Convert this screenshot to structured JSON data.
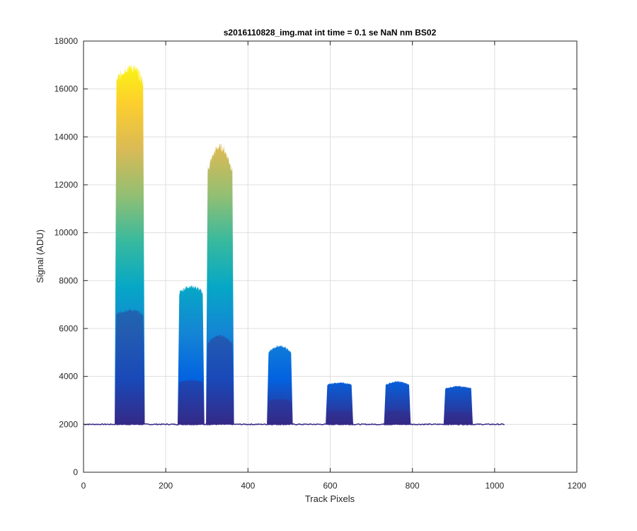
{
  "chart_data": {
    "type": "area",
    "title": "s2016110828_img.mat int time = 0.1 se  NaN nm BS02",
    "xlabel": "Track Pixels",
    "ylabel": "Signal (ADU)",
    "xlim": [
      0,
      1200
    ],
    "ylim": [
      0,
      18000
    ],
    "xticks": [
      0,
      200,
      400,
      600,
      800,
      1000,
      1200
    ],
    "yticks": [
      0,
      2000,
      4000,
      6000,
      8000,
      10000,
      12000,
      14000,
      16000,
      18000
    ],
    "grid": true,
    "colormap": [
      "#352a87",
      "#0363e1",
      "#1485d4",
      "#06a7c6",
      "#38b99e",
      "#92bf73",
      "#d9ba56",
      "#fcce2e",
      "#f9fb0e"
    ],
    "baseline": 2000,
    "x_range": [
      0,
      1024
    ],
    "series": [
      {
        "peaks": [
          {
            "start": 80,
            "end": 145,
            "level": 16300,
            "max": 17000
          },
          {
            "start": 233,
            "end": 290,
            "level": 7500,
            "max": 7800
          },
          {
            "start": 302,
            "end": 362,
            "level": 12600,
            "max": 13700
          },
          {
            "start": 450,
            "end": 505,
            "level": 5000,
            "max": 5300
          },
          {
            "start": 593,
            "end": 652,
            "level": 3650,
            "max": 3750
          },
          {
            "start": 735,
            "end": 792,
            "level": 3650,
            "max": 3800
          },
          {
            "start": 880,
            "end": 943,
            "level": 3500,
            "max": 3600
          }
        ]
      }
    ]
  }
}
